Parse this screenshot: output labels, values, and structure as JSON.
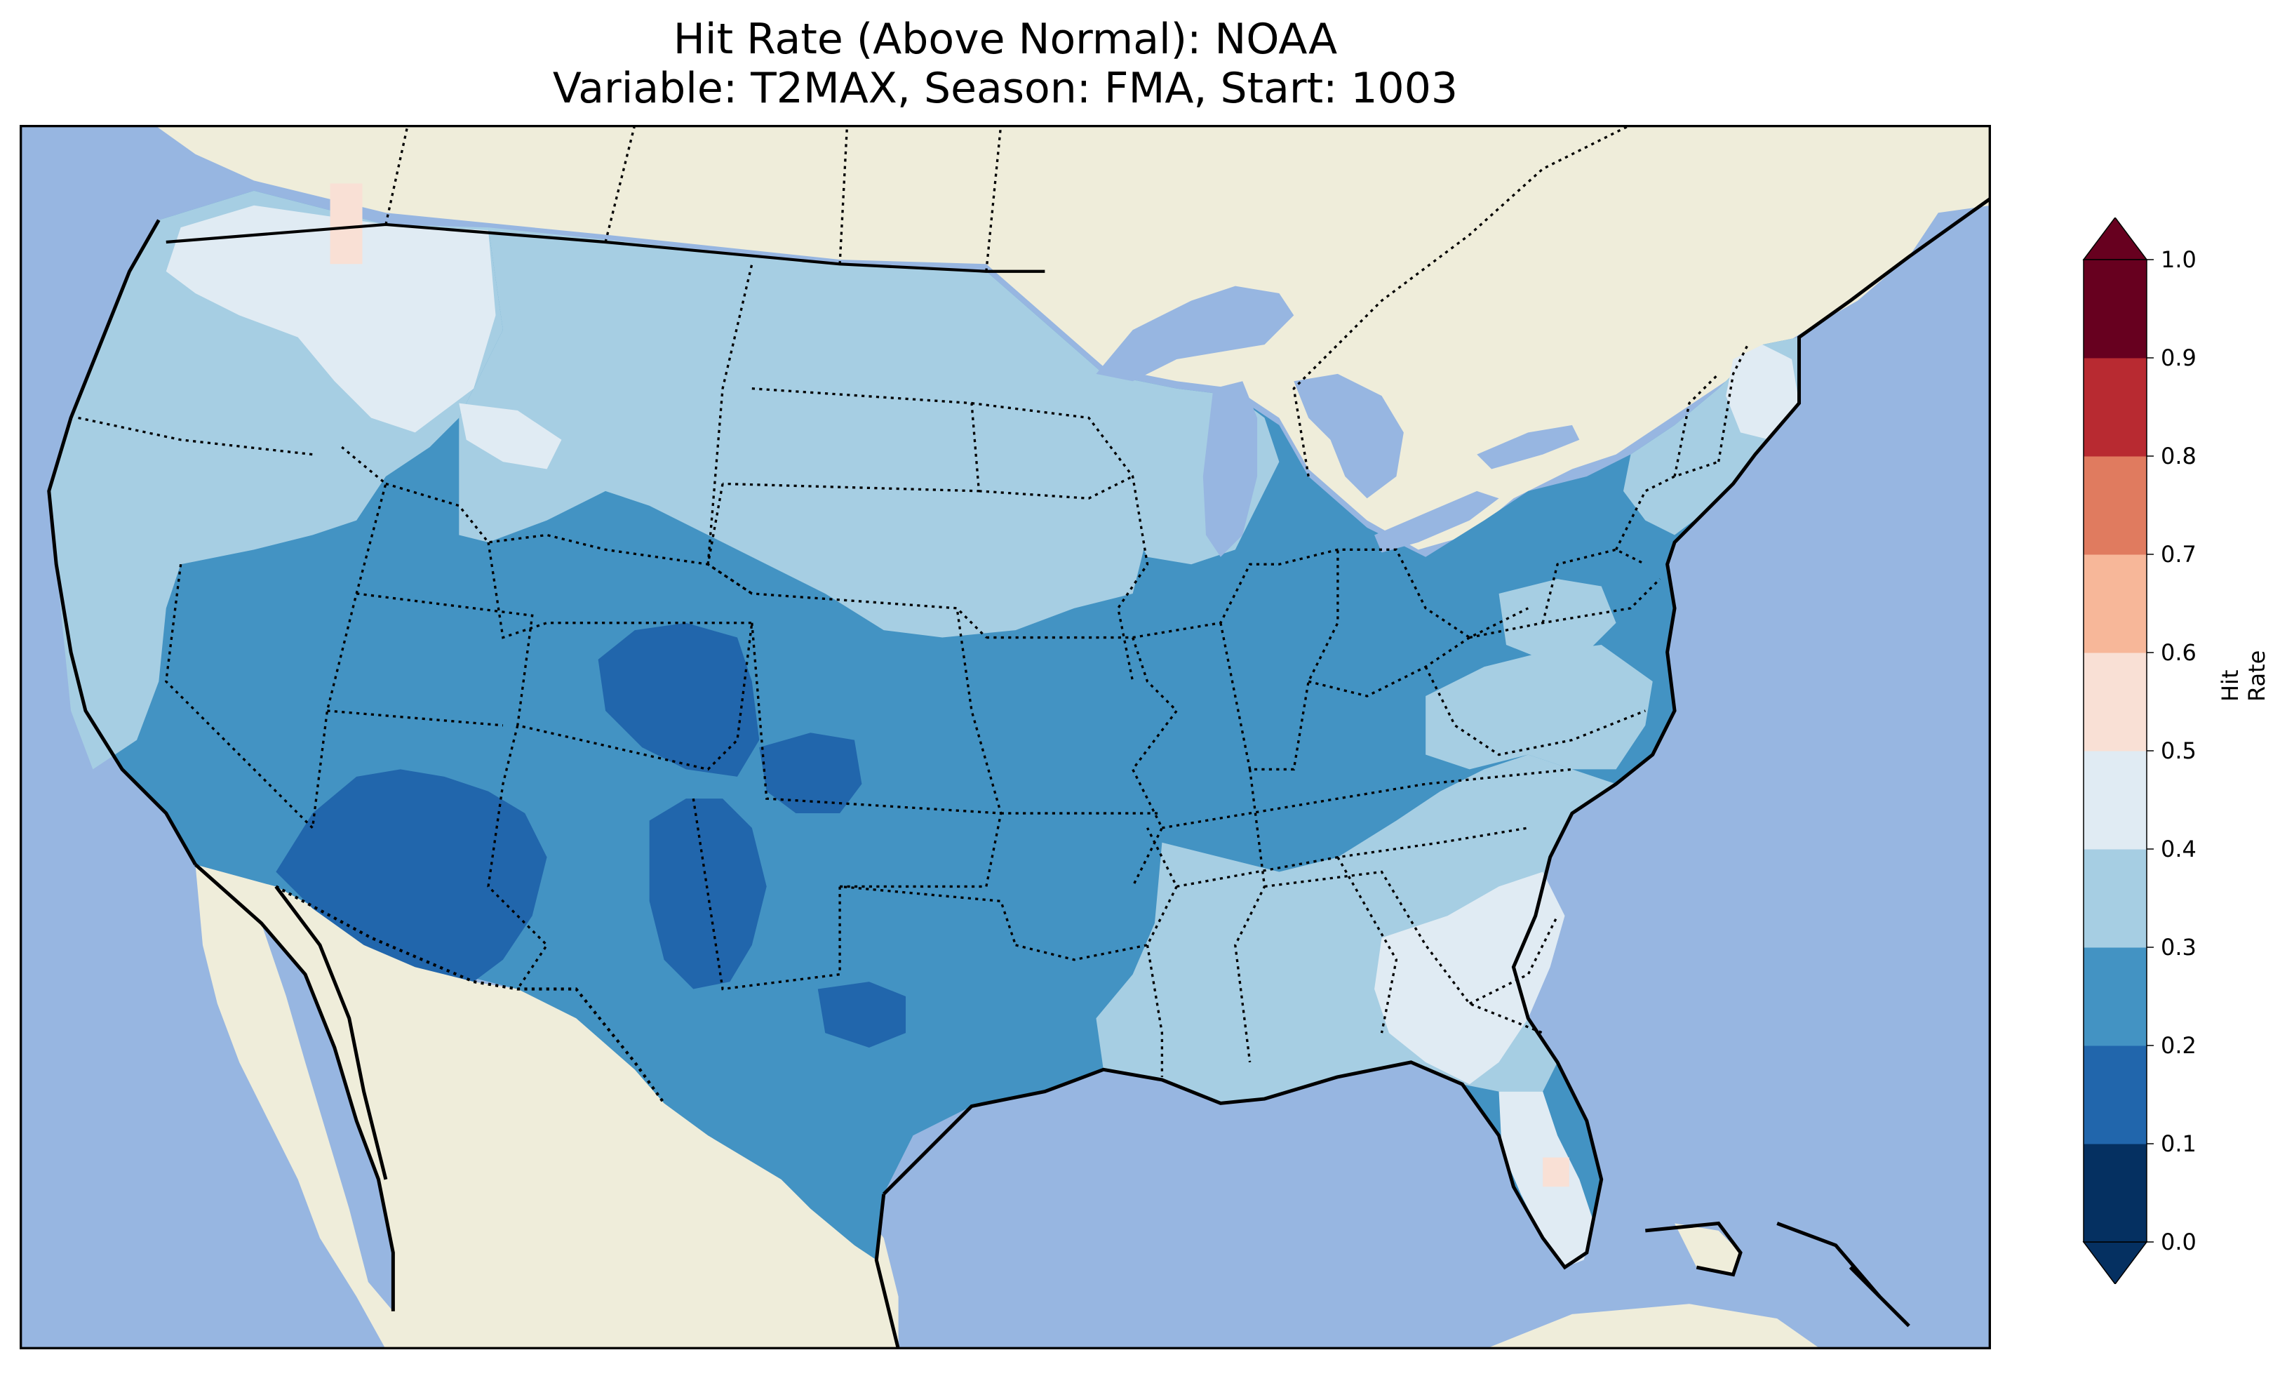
{
  "title": {
    "line1": "Hit Rate (Above Normal): NOAA",
    "line2": "Variable: T2MAX, Season: FMA, Start: 1003"
  },
  "colorbar": {
    "label": "Hit Rate",
    "ticks": [
      "0.0",
      "0.1",
      "0.2",
      "0.3",
      "0.4",
      "0.5",
      "0.6",
      "0.7",
      "0.8",
      "0.9",
      "1.0"
    ],
    "colors": [
      "#053061",
      "#2166ac",
      "#4393c3",
      "#92c5de",
      "#d1e5f0",
      "#f7f7f7",
      "#fddbc7",
      "#f4a582",
      "#d6604d",
      "#b2182b",
      "#67001f"
    ],
    "extend": "both"
  },
  "map": {
    "ocean_color": "#97b6e1",
    "land_color": "#efedda",
    "region": "Contiguous United States",
    "level_colors": {
      "0.1-0.2": "#2166ac",
      "0.2-0.3": "#4393c3",
      "0.3-0.4": "#a6cee3",
      "0.4-0.5": "#e0ebf3",
      "0.5-0.6": "#f9e0d5"
    }
  },
  "chart_data": {
    "type": "heatmap",
    "title": "Hit Rate (Above Normal): NOAA\nVariable: T2MAX, Season: FMA, Start: 1003",
    "colorbar_label": "Hit Rate",
    "range": [
      0.0,
      1.0
    ],
    "levels": [
      0.0,
      0.1,
      0.2,
      0.3,
      0.4,
      0.5,
      0.6,
      0.7,
      0.8,
      0.9,
      1.0
    ],
    "regions": [
      {
        "name": "Pacific Northwest coast",
        "value_range": [
          0.3,
          0.4
        ]
      },
      {
        "name": "Northern Idaho / Montana panhandle",
        "value_range": [
          0.4,
          0.5
        ]
      },
      {
        "name": "Northern Great Plains",
        "value_range": [
          0.3,
          0.4
        ]
      },
      {
        "name": "Desert Southwest (Arizona, New Mexico)",
        "value_range": [
          0.1,
          0.2
        ]
      },
      {
        "name": "Colorado / Kansas border",
        "value_range": [
          0.1,
          0.2
        ]
      },
      {
        "name": "Southern Plains & Texas",
        "value_range": [
          0.2,
          0.3
        ]
      },
      {
        "name": "Midwest (IL, IN, OH)",
        "value_range": [
          0.2,
          0.3
        ]
      },
      {
        "name": "Northeast",
        "value_range": [
          0.2,
          0.3
        ]
      },
      {
        "name": "Gulf Coast & Southeast",
        "value_range": [
          0.3,
          0.4
        ]
      },
      {
        "name": "Georgia / Carolinas coast",
        "value_range": [
          0.4,
          0.5
        ]
      },
      {
        "name": "Florida peninsula",
        "value_range": [
          0.4,
          0.5
        ]
      },
      {
        "name": "Northern Maine",
        "value_range": [
          0.4,
          0.5
        ]
      },
      {
        "name": "Isolated cells (N. Idaho, C. Florida)",
        "value_range": [
          0.5,
          0.6
        ]
      }
    ]
  }
}
